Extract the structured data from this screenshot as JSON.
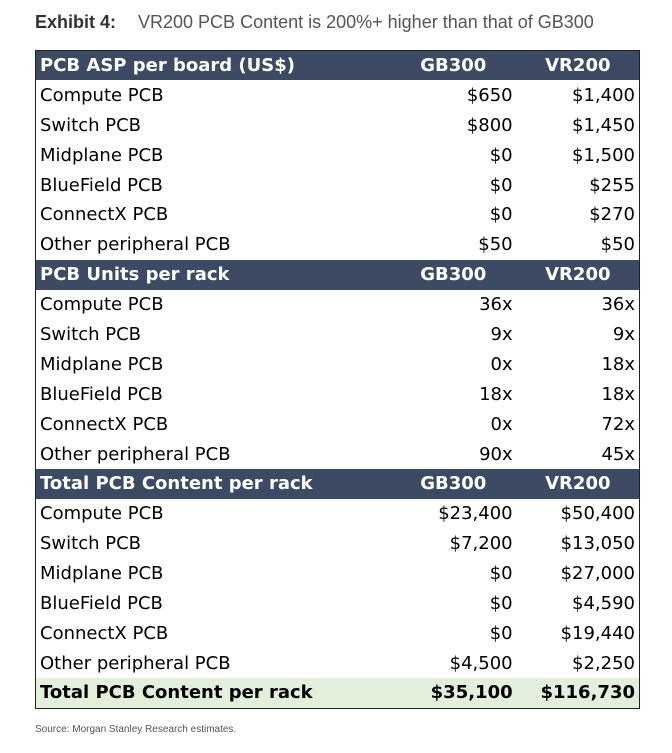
{
  "header": {
    "label": "Exhibit 4:",
    "title": "VR200 PCB Content is 200%+ higher than that of GB300"
  },
  "table": {
    "sections": [
      {
        "header": [
          "PCB ASP per board (US$)",
          "GB300",
          "VR200"
        ],
        "rows": [
          [
            "Compute PCB",
            "$650",
            "$1,400"
          ],
          [
            "Switch PCB",
            "$800",
            "$1,450"
          ],
          [
            "Midplane PCB",
            "$0",
            "$1,500"
          ],
          [
            "BlueField PCB",
            "$0",
            "$255"
          ],
          [
            "ConnectX PCB",
            "$0",
            "$270"
          ],
          [
            "Other peripheral PCB",
            "$50",
            "$50"
          ]
        ]
      },
      {
        "header": [
          "PCB Units per rack",
          "GB300",
          "VR200"
        ],
        "rows": [
          [
            "Compute PCB",
            "36x",
            "36x"
          ],
          [
            "Switch PCB",
            "9x",
            "9x"
          ],
          [
            "Midplane PCB",
            "0x",
            "18x"
          ],
          [
            "BlueField PCB",
            "18x",
            "18x"
          ],
          [
            "ConnectX PCB",
            "0x",
            "72x"
          ],
          [
            "Other peripheral PCB",
            "90x",
            "45x"
          ]
        ]
      },
      {
        "header": [
          "Total PCB Content per rack",
          "GB300",
          "VR200"
        ],
        "rows": [
          [
            "Compute PCB",
            "$23,400",
            "$50,400"
          ],
          [
            "Switch PCB",
            "$7,200",
            "$13,050"
          ],
          [
            "Midplane PCB",
            "$0",
            "$27,000"
          ],
          [
            "BlueField PCB",
            "$0",
            "$4,590"
          ],
          [
            "ConnectX PCB",
            "$0",
            "$19,440"
          ],
          [
            "Other peripheral PCB",
            "$4,500",
            "$2,250"
          ]
        ]
      }
    ],
    "total": [
      "Total PCB Content per rack",
      "$35,100",
      "$116,730"
    ]
  },
  "source": "Source: Morgan Stanley Research estimates."
}
